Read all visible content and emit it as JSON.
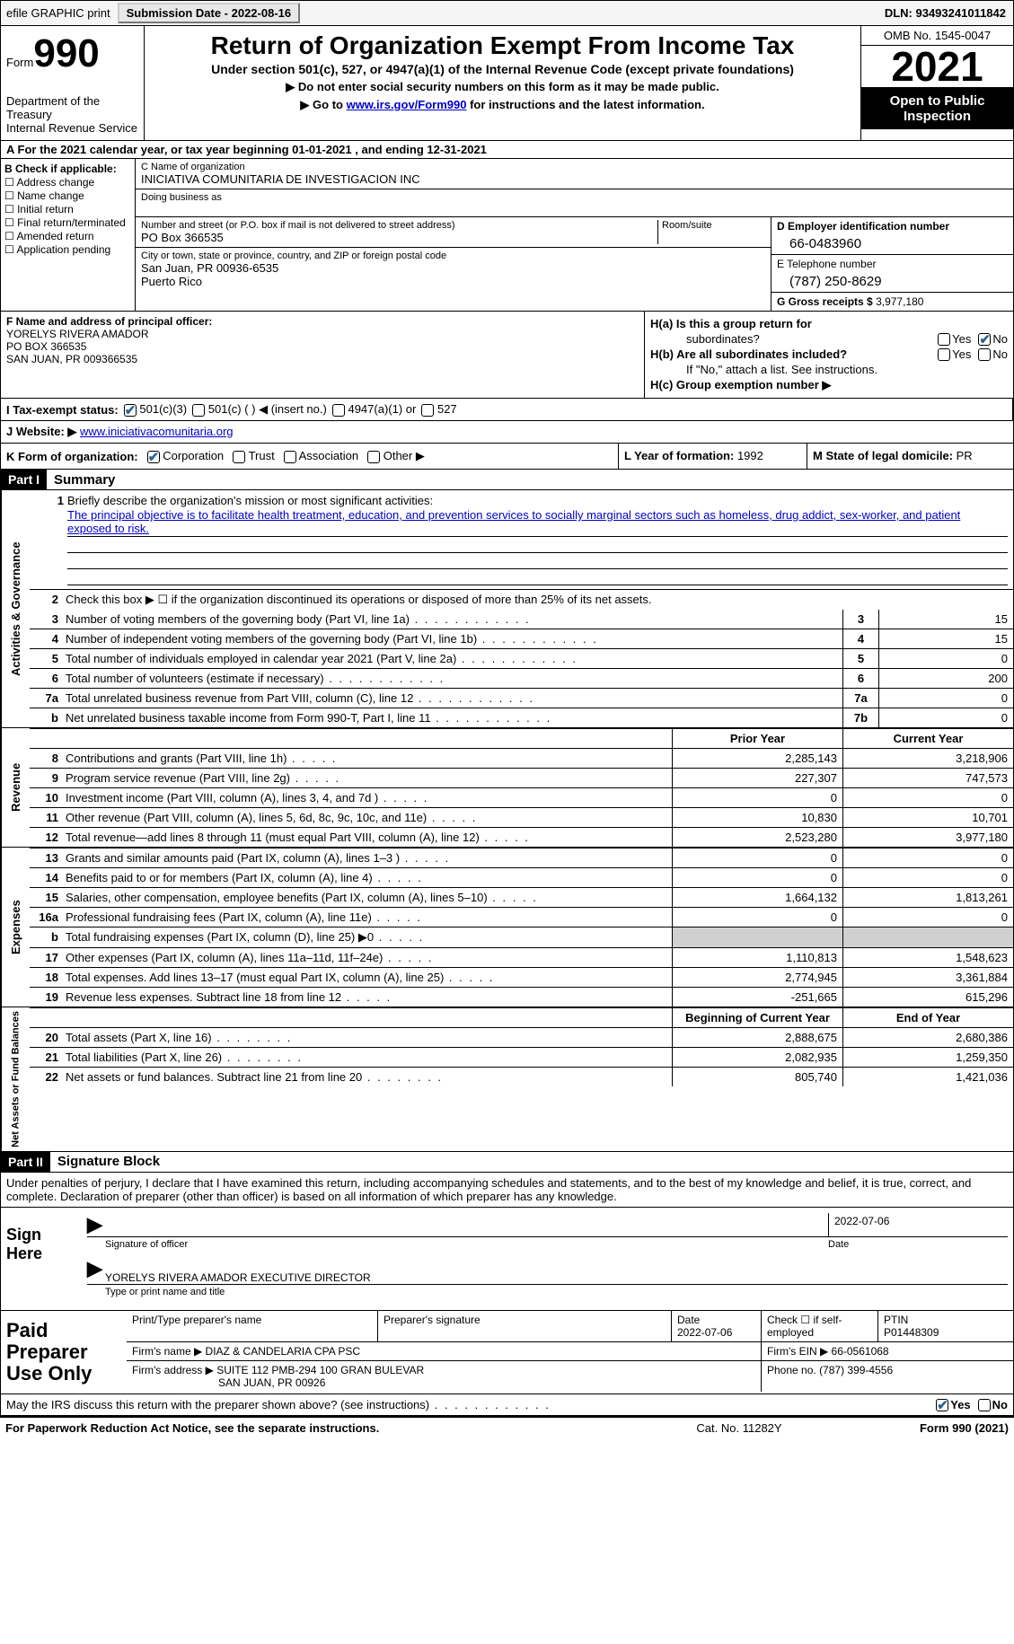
{
  "topbar": {
    "efile_label": "efile GRAPHIC print",
    "submission_label": "Submission Date - 2022-08-16",
    "dln_label": "DLN: 93493241011842"
  },
  "header": {
    "form_word": "Form",
    "form_number": "990",
    "dept": "Department of the Treasury",
    "irs": "Internal Revenue Service",
    "title": "Return of Organization Exempt From Income Tax",
    "sub1": "Under section 501(c), 527, or 4947(a)(1) of the Internal Revenue Code (except private foundations)",
    "sub2": "▶ Do not enter social security numbers on this form as it may be made public.",
    "sub3_pre": "▶ Go to ",
    "sub3_link": "www.irs.gov/Form990",
    "sub3_post": " for instructions and the latest information.",
    "omb": "OMB No. 1545-0047",
    "year": "2021",
    "open1": "Open to Public",
    "open2": "Inspection"
  },
  "row_a": "A For the 2021 calendar year, or tax year beginning 01-01-2021   , and ending 12-31-2021",
  "col_b": {
    "hdr": "B Check if applicable:",
    "opts": [
      "Address change",
      "Name change",
      "Initial return",
      "Final return/terminated",
      "Amended return",
      "Application pending"
    ]
  },
  "col_c": {
    "name_lbl": "C Name of organization",
    "name_val": "INICIATIVA COMUNITARIA DE INVESTIGACION INC",
    "dba_lbl": "Doing business as",
    "street_lbl": "Number and street (or P.O. box if mail is not delivered to street address)",
    "street_val": "PO Box 366535",
    "room_lbl": "Room/suite",
    "city_lbl": "City or town, state or province, country, and ZIP or foreign postal code",
    "city_val": "San Juan, PR  00936-6535",
    "country_val": "Puerto Rico"
  },
  "col_de": {
    "ein_lbl": "D Employer identification number",
    "ein_val": "66-0483960",
    "tel_lbl": "E Telephone number",
    "tel_val": "(787) 250-8629",
    "gross_lbl": "G Gross receipts $",
    "gross_val": "3,977,180"
  },
  "col_f": {
    "lbl": "F  Name and address of principal officer:",
    "name": "YORELYS RIVERA AMADOR",
    "addr1": "PO BOX 366535",
    "addr2": "SAN JUAN, PR  009366535"
  },
  "col_h": {
    "ha_lbl": "H(a)  Is this a group return for",
    "ha_sub": "subordinates?",
    "hb_lbl": "H(b)  Are all subordinates included?",
    "hb_note": "If \"No,\" attach a list. See instructions.",
    "hc_lbl": "H(c)  Group exemption number ▶",
    "yes": "Yes",
    "no": "No"
  },
  "row_i": {
    "lbl": "I    Tax-exempt status:",
    "o1": "501(c)(3)",
    "o2": "501(c) (  ) ◀ (insert no.)",
    "o3": "4947(a)(1) or",
    "o4": "527"
  },
  "row_j": {
    "lbl": "J   Website: ▶ ",
    "val": "www.iniciativacomunitaria.org"
  },
  "row_k": {
    "lbl": "K Form of organization:",
    "o1": "Corporation",
    "o2": "Trust",
    "o3": "Association",
    "o4": "Other ▶"
  },
  "row_l": {
    "lbl": "L Year of formation: ",
    "val": "1992"
  },
  "row_m": {
    "lbl": "M State of legal domicile: ",
    "val": "PR"
  },
  "part1": {
    "hdr": "Part I",
    "title": "Summary"
  },
  "mission": {
    "lbl": "Briefly describe the organization's mission or most significant activities:",
    "text": "The principal objective is to facilitate health treatment, education, and prevention services to socially marginal sectors such as homeless, drug addict, sex-worker, and patient exposed to risk."
  },
  "line2": "Check this box ▶ ☐  if the organization discontinued its operations or disposed of more than 25% of its net assets.",
  "lines_gov": [
    {
      "n": "3",
      "d": "Number of voting members of the governing body (Part VI, line 1a)",
      "box": "3",
      "v": "15"
    },
    {
      "n": "4",
      "d": "Number of independent voting members of the governing body (Part VI, line 1b)",
      "box": "4",
      "v": "15"
    },
    {
      "n": "5",
      "d": "Total number of individuals employed in calendar year 2021 (Part V, line 2a)",
      "box": "5",
      "v": "0"
    },
    {
      "n": "6",
      "d": "Total number of volunteers (estimate if necessary)",
      "box": "6",
      "v": "200"
    },
    {
      "n": "7a",
      "d": "Total unrelated business revenue from Part VIII, column (C), line 12",
      "box": "7a",
      "v": "0"
    },
    {
      "n": "b",
      "d": "Net unrelated business taxable income from Form 990-T, Part I, line 11",
      "box": "7b",
      "v": "0"
    }
  ],
  "colhdr": {
    "prior": "Prior Year",
    "curr": "Current Year"
  },
  "revenue": [
    {
      "n": "8",
      "d": "Contributions and grants (Part VIII, line 1h)",
      "p": "2,285,143",
      "c": "3,218,906"
    },
    {
      "n": "9",
      "d": "Program service revenue (Part VIII, line 2g)",
      "p": "227,307",
      "c": "747,573"
    },
    {
      "n": "10",
      "d": "Investment income (Part VIII, column (A), lines 3, 4, and 7d )",
      "p": "0",
      "c": "0"
    },
    {
      "n": "11",
      "d": "Other revenue (Part VIII, column (A), lines 5, 6d, 8c, 9c, 10c, and 11e)",
      "p": "10,830",
      "c": "10,701"
    },
    {
      "n": "12",
      "d": "Total revenue—add lines 8 through 11 (must equal Part VIII, column (A), line 12)",
      "p": "2,523,280",
      "c": "3,977,180"
    }
  ],
  "expenses": [
    {
      "n": "13",
      "d": "Grants and similar amounts paid (Part IX, column (A), lines 1–3 )",
      "p": "0",
      "c": "0"
    },
    {
      "n": "14",
      "d": "Benefits paid to or for members (Part IX, column (A), line 4)",
      "p": "0",
      "c": "0"
    },
    {
      "n": "15",
      "d": "Salaries, other compensation, employee benefits (Part IX, column (A), lines 5–10)",
      "p": "1,664,132",
      "c": "1,813,261"
    },
    {
      "n": "16a",
      "d": "Professional fundraising fees (Part IX, column (A), line 11e)",
      "p": "0",
      "c": "0"
    },
    {
      "n": "b",
      "d": "Total fundraising expenses (Part IX, column (D), line 25) ▶0",
      "p": "",
      "c": "",
      "shaded": true
    },
    {
      "n": "17",
      "d": "Other expenses (Part IX, column (A), lines 11a–11d, 11f–24e)",
      "p": "1,110,813",
      "c": "1,548,623"
    },
    {
      "n": "18",
      "d": "Total expenses. Add lines 13–17 (must equal Part IX, column (A), line 25)",
      "p": "2,774,945",
      "c": "3,361,884"
    },
    {
      "n": "19",
      "d": "Revenue less expenses. Subtract line 18 from line 12",
      "p": "-251,665",
      "c": "615,296"
    }
  ],
  "colhdr2": {
    "prior": "Beginning of Current Year",
    "curr": "End of Year"
  },
  "netassets": [
    {
      "n": "20",
      "d": "Total assets (Part X, line 16)",
      "p": "2,888,675",
      "c": "2,680,386"
    },
    {
      "n": "21",
      "d": "Total liabilities (Part X, line 26)",
      "p": "2,082,935",
      "c": "1,259,350"
    },
    {
      "n": "22",
      "d": "Net assets or fund balances. Subtract line 21 from line 20",
      "p": "805,740",
      "c": "1,421,036"
    }
  ],
  "part2": {
    "hdr": "Part II",
    "title": "Signature Block"
  },
  "sig_intro": "Under penalties of perjury, I declare that I have examined this return, including accompanying schedules and statements, and to the best of my knowledge and belief, it is true, correct, and complete. Declaration of preparer (other than officer) is based on all information of which preparer has any knowledge.",
  "sign_here": "Sign Here",
  "sig_officer_lbl": "Signature of officer",
  "sig_date_val": "2022-07-06",
  "sig_date_lbl": "Date",
  "sig_name_val": "YORELYS RIVERA AMADOR  EXECUTIVE DIRECTOR",
  "sig_name_lbl": "Type or print name and title",
  "paid_hdr": "Paid Preparer Use Only",
  "paid": {
    "prep_name_lbl": "Print/Type preparer's name",
    "prep_sig_lbl": "Preparer's signature",
    "date_lbl": "Date",
    "date_val": "2022-07-06",
    "self_lbl": "Check ☐ if self-employed",
    "ptin_lbl": "PTIN",
    "ptin_val": "P01448309",
    "firm_name_lbl": "Firm's name    ▶",
    "firm_name_val": "DIAZ & CANDELARIA CPA PSC",
    "firm_ein_lbl": "Firm's EIN ▶",
    "firm_ein_val": "66-0561068",
    "firm_addr_lbl": "Firm's address ▶",
    "firm_addr_val1": "SUITE 112 PMB-294 100 GRAN BULEVAR",
    "firm_addr_val2": "SAN JUAN, PR  00926",
    "phone_lbl": "Phone no.",
    "phone_val": "(787) 399-4556"
  },
  "discuss": "May the IRS discuss this return with the preparer shown above? (see instructions)",
  "yes": "Yes",
  "no": "No",
  "footer": {
    "left": "For Paperwork Reduction Act Notice, see the separate instructions.",
    "center": "Cat. No. 11282Y",
    "right": "Form 990 (2021)"
  },
  "vtabs": {
    "gov": "Activities & Governance",
    "rev": "Revenue",
    "exp": "Expenses",
    "net": "Net Assets or Fund Balances"
  }
}
